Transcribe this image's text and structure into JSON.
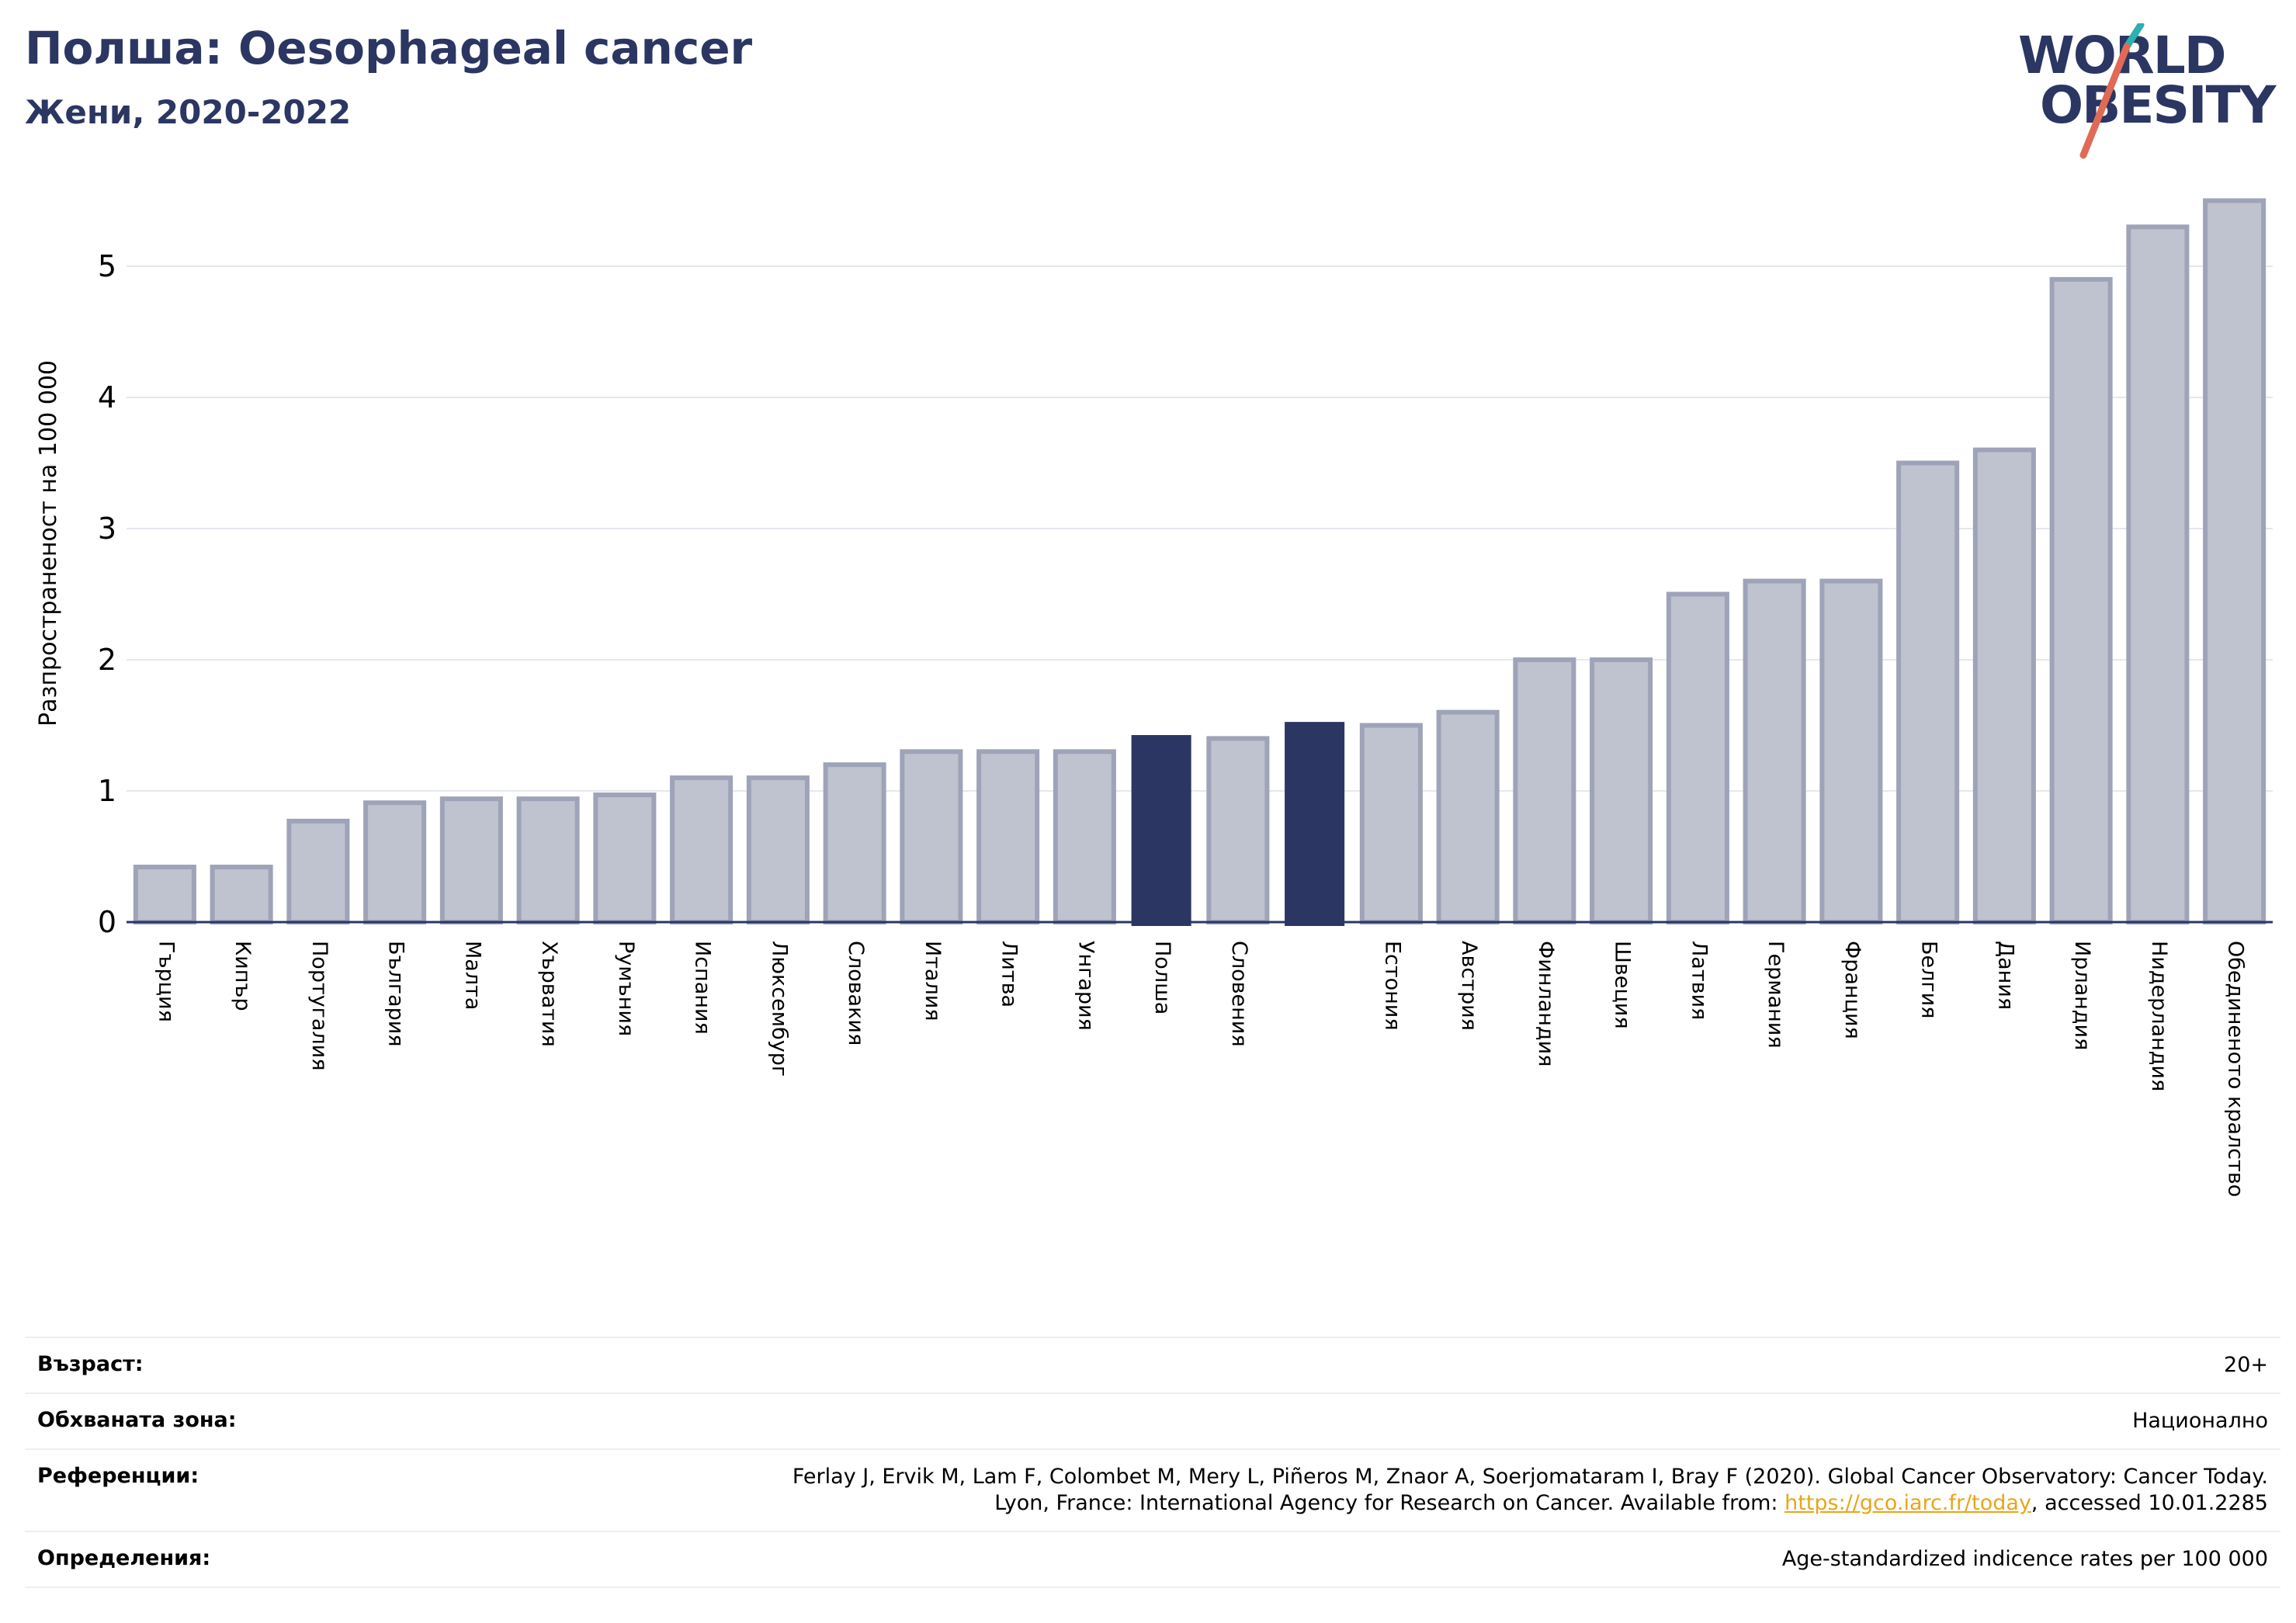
{
  "header": {
    "title": "Полша: Oesophageal cancer",
    "subtitle": "Жени, 2020-2022"
  },
  "logo": {
    "line1": "WORLD",
    "line2": "OBESITY"
  },
  "colors": {
    "title": "#2b3663",
    "bar_default": "#bfc2cf",
    "bar_default_stroke": "#9ea3b8",
    "bar_highlight": "#2b3663",
    "gridline": "#e6e8ee",
    "link": "#e8a617",
    "logo_teal": "#2ab1b0",
    "logo_coral": "#e06a55"
  },
  "chart_data": {
    "type": "bar",
    "title": "Полша: Oesophageal cancer",
    "subtitle": "Жени, 2020-2022",
    "xlabel": "",
    "ylabel": "Разпространеност  на 100 000",
    "ylim": [
      0,
      5.6
    ],
    "yticks": [
      0,
      1,
      2,
      3,
      4,
      5
    ],
    "grid": true,
    "categories": [
      "Гърция",
      "Кипър",
      "Португалия",
      "България",
      "Малта",
      "Хърватия",
      "Румъния",
      "Испания",
      "Люксембург",
      "Словакия",
      "Италия",
      "Литва",
      "Унгария",
      "Полша",
      "Словения",
      "",
      "Естония",
      "Австрия",
      "Финландия",
      "Швеция",
      "Латвия",
      "Германия",
      "Франция",
      "Белгия",
      "Дания",
      "Ирландия",
      "Нидерландия",
      "Обединеното кралство"
    ],
    "values": [
      0.42,
      0.42,
      0.77,
      0.91,
      0.94,
      0.94,
      0.97,
      1.1,
      1.1,
      1.2,
      1.3,
      1.3,
      1.3,
      1.42,
      1.4,
      1.52,
      1.5,
      1.6,
      2.0,
      2.0,
      2.5,
      2.6,
      2.6,
      3.5,
      3.6,
      4.9,
      5.3,
      5.5
    ],
    "highlighted": [
      13,
      15
    ]
  },
  "footer": {
    "age_label": "Възраст:",
    "age_value": "20+",
    "area_label": "Обхваната зона:",
    "area_value": "Национално",
    "refs_label": "Референции:",
    "refs_line1": "Ferlay J, Ervik M, Lam F, Colombet M, Mery L, Piñeros M, Znaor A, Soerjomataram I, Bray F (2020). Global Cancer Observatory: Cancer Today.",
    "refs_line2_prefix": "Lyon, France: International Agency for Research on Cancer. Available from: ",
    "refs_link": "https://gco.iarc.fr/today",
    "refs_line2_suffix": ", accessed 10.01.2285",
    "defs_label": "Определения:",
    "defs_value": "Age-standardized indicence rates per 100 000"
  }
}
